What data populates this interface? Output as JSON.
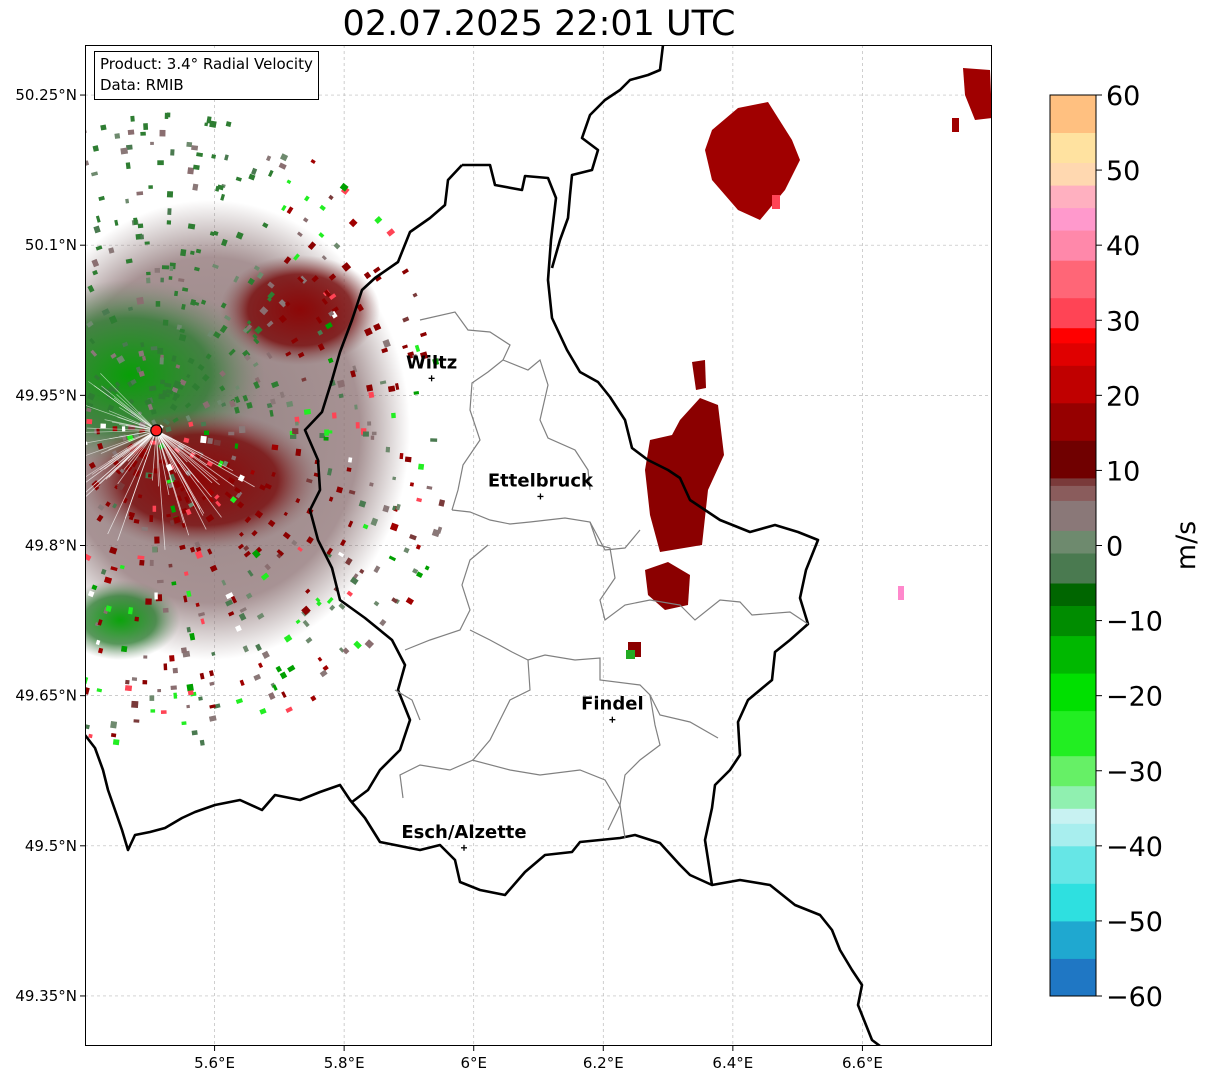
{
  "title": "02.07.2025 22:01 UTC",
  "info": {
    "product_line": "Product: 3.4° Radial Velocity",
    "data_line": "Data: RMIB"
  },
  "map": {
    "lon_range": [
      5.4,
      6.8
    ],
    "lat_range": [
      49.3,
      50.3
    ],
    "lon_ticks": [
      {
        "value": 5.6,
        "label": "5.6°E"
      },
      {
        "value": 5.8,
        "label": "5.8°E"
      },
      {
        "value": 6.0,
        "label": "6°E"
      },
      {
        "value": 6.2,
        "label": "6.2°E"
      },
      {
        "value": 6.4,
        "label": "6.4°E"
      },
      {
        "value": 6.6,
        "label": "6.6°E"
      }
    ],
    "lat_ticks": [
      {
        "value": 49.35,
        "label": "49.35°N"
      },
      {
        "value": 49.5,
        "label": "49.5°N"
      },
      {
        "value": 49.65,
        "label": "49.65°N"
      },
      {
        "value": 49.8,
        "label": "49.8°N"
      },
      {
        "value": 49.95,
        "label": "49.95°N"
      },
      {
        "value": 50.1,
        "label": "50.1°N"
      },
      {
        "value": 50.25,
        "label": "50.25°N"
      }
    ],
    "radar_site": {
      "lon": 5.51,
      "lat": 49.915
    },
    "cities": [
      {
        "name": "Wiltz",
        "lon": 5.935,
        "lat": 49.967
      },
      {
        "name": "Ettelbruck",
        "lon": 6.103,
        "lat": 49.849
      },
      {
        "name": "Findel",
        "lon": 6.214,
        "lat": 49.626
      },
      {
        "name": "Esch/Alzette",
        "lon": 5.985,
        "lat": 49.498
      }
    ]
  },
  "colorbar": {
    "label": "m/s",
    "min": -60,
    "max": 60,
    "ticks": [
      {
        "value": 60,
        "label": "60"
      },
      {
        "value": 50,
        "label": "50"
      },
      {
        "value": 40,
        "label": "40"
      },
      {
        "value": 30,
        "label": "30"
      },
      {
        "value": 20,
        "label": "20"
      },
      {
        "value": 10,
        "label": "10"
      },
      {
        "value": 0,
        "label": "0"
      },
      {
        "value": -10,
        "label": "−10"
      },
      {
        "value": -20,
        "label": "−20"
      },
      {
        "value": -30,
        "label": "−30"
      },
      {
        "value": -40,
        "label": "−40"
      },
      {
        "value": -50,
        "label": "−50"
      },
      {
        "value": -60,
        "label": "−60"
      }
    ],
    "color_stops": [
      {
        "value": -60,
        "color": "#1f77c4"
      },
      {
        "value": -55,
        "color": "#1fa8d0"
      },
      {
        "value": -50,
        "color": "#2ee0e0"
      },
      {
        "value": -45,
        "color": "#66e6e6"
      },
      {
        "value": -40,
        "color": "#a8eeee"
      },
      {
        "value": -37,
        "color": "#c8f2f2"
      },
      {
        "value": -35,
        "color": "#90f0b0"
      },
      {
        "value": -32,
        "color": "#66f066"
      },
      {
        "value": -28,
        "color": "#22ee22"
      },
      {
        "value": -22,
        "color": "#00e000"
      },
      {
        "value": -17,
        "color": "#00b800"
      },
      {
        "value": -12,
        "color": "#008c00"
      },
      {
        "value": -8,
        "color": "#006600"
      },
      {
        "value": -5,
        "color": "#4a7a50"
      },
      {
        "value": -1,
        "color": "#6e8a6e"
      },
      {
        "value": 2,
        "color": "#8a7878"
      },
      {
        "value": 6,
        "color": "#8a5c5c"
      },
      {
        "value": 8,
        "color": "#7a3a3a"
      },
      {
        "value": 9,
        "color": "#700000"
      },
      {
        "value": 14,
        "color": "#960000"
      },
      {
        "value": 19,
        "color": "#c00000"
      },
      {
        "value": 24,
        "color": "#e00000"
      },
      {
        "value": 27,
        "color": "#ff0000"
      },
      {
        "value": 29,
        "color": "#ff4455"
      },
      {
        "value": 33,
        "color": "#ff6677"
      },
      {
        "value": 38,
        "color": "#ff88aa"
      },
      {
        "value": 42,
        "color": "#ff99cc"
      },
      {
        "value": 45,
        "color": "#ffb0c0"
      },
      {
        "value": 48,
        "color": "#ffd8b0"
      },
      {
        "value": 51,
        "color": "#ffe2a0"
      },
      {
        "value": 55,
        "color": "#ffc080"
      },
      {
        "value": 60,
        "color": "#ffa060"
      }
    ]
  },
  "colors": {
    "border": "#000000",
    "canton": "#808080",
    "grid": "#bbbbbb",
    "radar_site": "#ff2020",
    "receding": "#8b0000",
    "approaching": "#008000",
    "near_zero": "#8a7878"
  }
}
